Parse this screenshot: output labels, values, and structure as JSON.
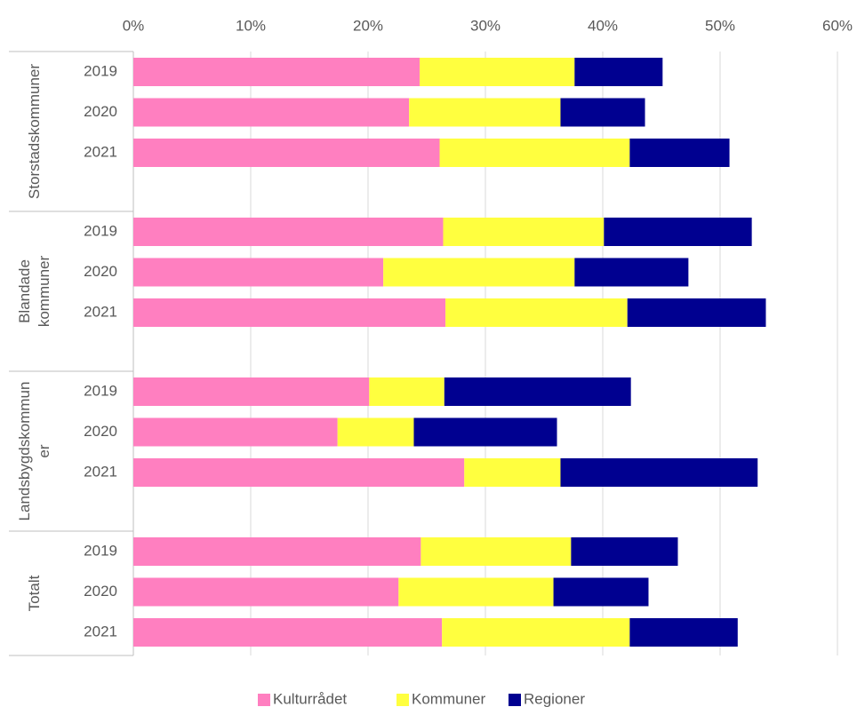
{
  "chart_data": {
    "type": "stacked-bar-horizontal",
    "groups": [
      {
        "label": [
          "Storstadskommuner"
        ],
        "categories": [
          "2019",
          "2020",
          "2021"
        ]
      },
      {
        "label": [
          "Blandade",
          "kommuner"
        ],
        "categories": [
          "2019",
          "2020",
          "2021"
        ]
      },
      {
        "label": [
          "Landsbygdskommun",
          "er"
        ],
        "categories": [
          "2019",
          "2020",
          "2021"
        ]
      },
      {
        "label": [
          "Totalt"
        ],
        "categories": [
          "2019",
          "2020",
          "2021"
        ]
      }
    ],
    "series": [
      {
        "name": "Kulturrådet",
        "color": "#ff7fc0",
        "values": [
          24.4,
          23.5,
          26.1,
          26.4,
          21.3,
          26.6,
          20.1,
          17.4,
          28.2,
          24.5,
          22.6,
          26.3
        ]
      },
      {
        "name": "Kommuner",
        "color": "#ffff3f",
        "values": [
          13.2,
          12.9,
          16.2,
          13.7,
          16.3,
          15.5,
          6.4,
          6.5,
          8.2,
          12.8,
          13.2,
          16.0
        ]
      },
      {
        "name": "Regioner",
        "color": "#000090",
        "values": [
          7.5,
          7.2,
          8.5,
          12.6,
          9.7,
          11.8,
          15.9,
          12.2,
          16.8,
          9.1,
          8.1,
          9.2
        ]
      }
    ],
    "xlim": [
      0,
      60
    ],
    "xticks": [
      {
        "value": 0,
        "label": "0%"
      },
      {
        "value": 10,
        "label": "10%"
      },
      {
        "value": 20,
        "label": "20%"
      },
      {
        "value": 30,
        "label": "30%"
      },
      {
        "value": 40,
        "label": "40%"
      },
      {
        "value": 50,
        "label": "50%"
      },
      {
        "value": 60,
        "label": "60%"
      }
    ],
    "grid": true,
    "legend": "bottom"
  }
}
